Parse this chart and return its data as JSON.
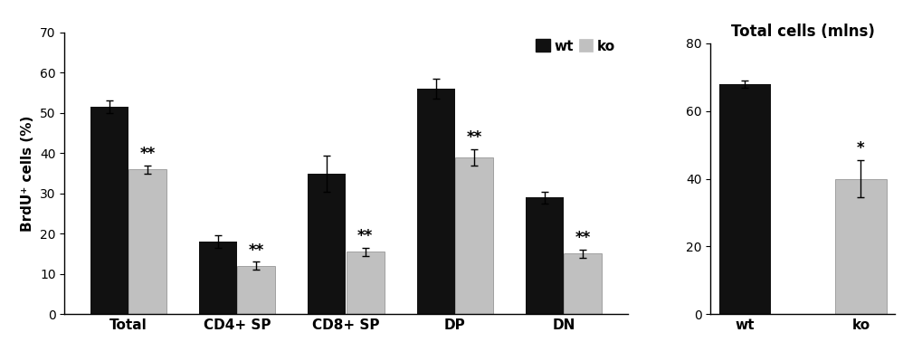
{
  "left_chart": {
    "categories": [
      "Total",
      "CD4+ SP",
      "CD8+ SP",
      "DP",
      "DN"
    ],
    "wt_values": [
      51.5,
      18.0,
      35.0,
      56.0,
      29.0
    ],
    "ko_values": [
      36.0,
      12.0,
      15.5,
      39.0,
      15.0
    ],
    "wt_errors": [
      1.5,
      1.5,
      4.5,
      2.5,
      1.5
    ],
    "ko_errors": [
      1.0,
      1.0,
      1.0,
      2.0,
      1.0
    ],
    "ko_annotations": [
      "**",
      "**",
      "**",
      "**",
      "**"
    ],
    "ylabel": "BrdU⁺ cells (%)",
    "ylim": [
      0,
      70
    ],
    "yticks": [
      0,
      10,
      20,
      30,
      40,
      50,
      60,
      70
    ],
    "wt_color": "#111111",
    "ko_color": "#c0c0c0",
    "legend_wt": "wt",
    "legend_ko": "ko"
  },
  "right_chart": {
    "categories": [
      "wt",
      "ko"
    ],
    "values": [
      68.0,
      40.0
    ],
    "errors": [
      1.0,
      5.5
    ],
    "colors": [
      "#111111",
      "#c0c0c0"
    ],
    "annotation": "*",
    "title": "Total cells (mlns)",
    "ylim": [
      0,
      80
    ],
    "yticks": [
      0,
      20,
      40,
      60,
      80
    ]
  },
  "bar_width": 0.35,
  "background_color": "#ffffff",
  "fontsize_labels": 11,
  "fontsize_ticks": 10,
  "fontsize_annot": 12,
  "fontsize_title": 12,
  "fontsize_legend": 11
}
